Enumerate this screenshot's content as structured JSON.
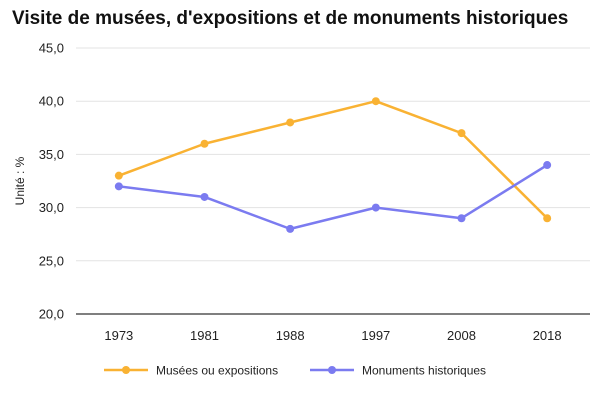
{
  "chart_data": {
    "type": "line",
    "title": "Visite de musées, d'expositions et de monuments historiques",
    "xlabel": "",
    "ylabel": "Unité : %",
    "categories": [
      "1973",
      "1981",
      "1988",
      "1997",
      "2008",
      "2018"
    ],
    "ylim": [
      20,
      45
    ],
    "yticks": [
      "20,0",
      "25,0",
      "30,0",
      "35,0",
      "40,0",
      "45,0"
    ],
    "grid": true,
    "legend_position": "bottom",
    "series": [
      {
        "name": "Musées ou expositions",
        "color": "#f9b233",
        "values": [
          33,
          36,
          38,
          40,
          37,
          29
        ]
      },
      {
        "name": "Monuments historiques",
        "color": "#7b7bf0",
        "values": [
          32,
          31,
          28,
          30,
          29,
          34
        ]
      }
    ]
  }
}
